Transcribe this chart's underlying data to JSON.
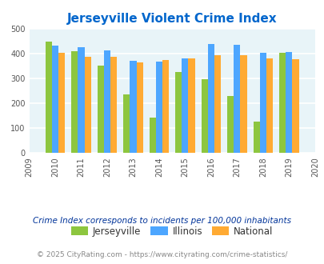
{
  "title": "Jerseyville Violent Crime Index",
  "years": [
    2010,
    2011,
    2012,
    2013,
    2014,
    2015,
    2016,
    2017,
    2018,
    2019
  ],
  "jerseyville": [
    448,
    412,
    354,
    236,
    143,
    328,
    299,
    231,
    128,
    403
  ],
  "illinois": [
    433,
    428,
    414,
    372,
    369,
    383,
    439,
    438,
    405,
    408
  ],
  "national": [
    404,
    387,
    387,
    365,
    375,
    383,
    396,
    394,
    381,
    379
  ],
  "bar_colors": {
    "jerseyville": "#8dc63f",
    "illinois": "#4da6ff",
    "national": "#ffaa33"
  },
  "legend_labels": [
    "Jerseyville",
    "Illinois",
    "National"
  ],
  "ylim": [
    0,
    500
  ],
  "yticks": [
    0,
    100,
    200,
    300,
    400,
    500
  ],
  "xlim": [
    2009,
    2020
  ],
  "xticks": [
    2009,
    2010,
    2011,
    2012,
    2013,
    2014,
    2015,
    2016,
    2017,
    2018,
    2019,
    2020
  ],
  "title_color": "#0066cc",
  "title_fontsize": 11,
  "bg_color": "#e8f4f8",
  "grid_color": "#ffffff",
  "footnote1": "Crime Index corresponds to incidents per 100,000 inhabitants",
  "footnote2": "© 2025 CityRating.com - https://www.cityrating.com/crime-statistics/",
  "footnote1_color": "#003399",
  "footnote2_color": "#888888",
  "bar_width": 0.25
}
